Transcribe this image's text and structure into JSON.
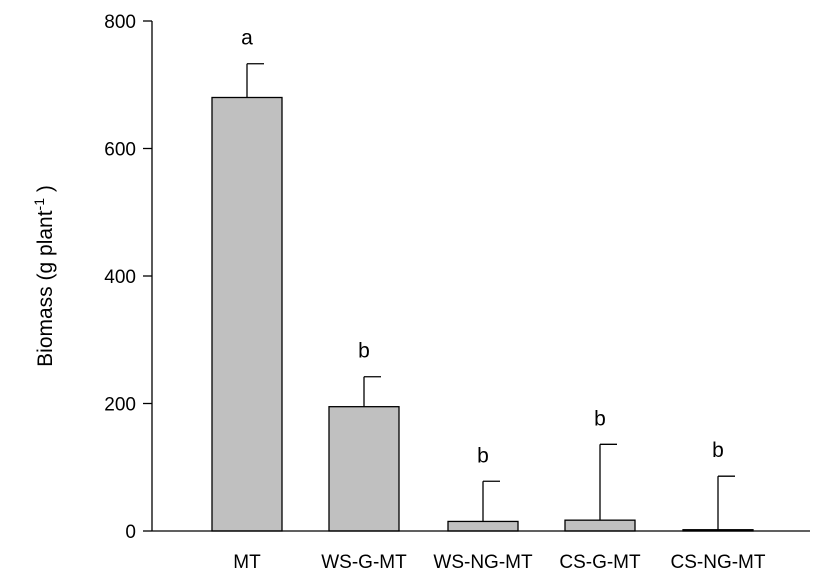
{
  "chart_data": {
    "type": "bar",
    "ylabel_main": "Biomass (g plant",
    "ylabel_sup": "-1",
    "ylabel_close": " )",
    "xlabel": "",
    "ylim": [
      0,
      800
    ],
    "yticks": [
      0,
      200,
      400,
      600,
      800
    ],
    "grid": false,
    "categories": [
      "MT",
      "WS-G-MT",
      "WS-NG-MT",
      "CS-G-MT",
      "CS-NG-MT"
    ],
    "values": [
      680,
      195,
      15,
      17,
      2
    ],
    "errors": [
      53,
      47,
      63,
      119,
      84
    ],
    "significance": [
      "a",
      "b",
      "b",
      "b",
      "b"
    ],
    "colors": {
      "bar_fill": "#c0c0c0",
      "bar_stroke": "#000000"
    }
  }
}
